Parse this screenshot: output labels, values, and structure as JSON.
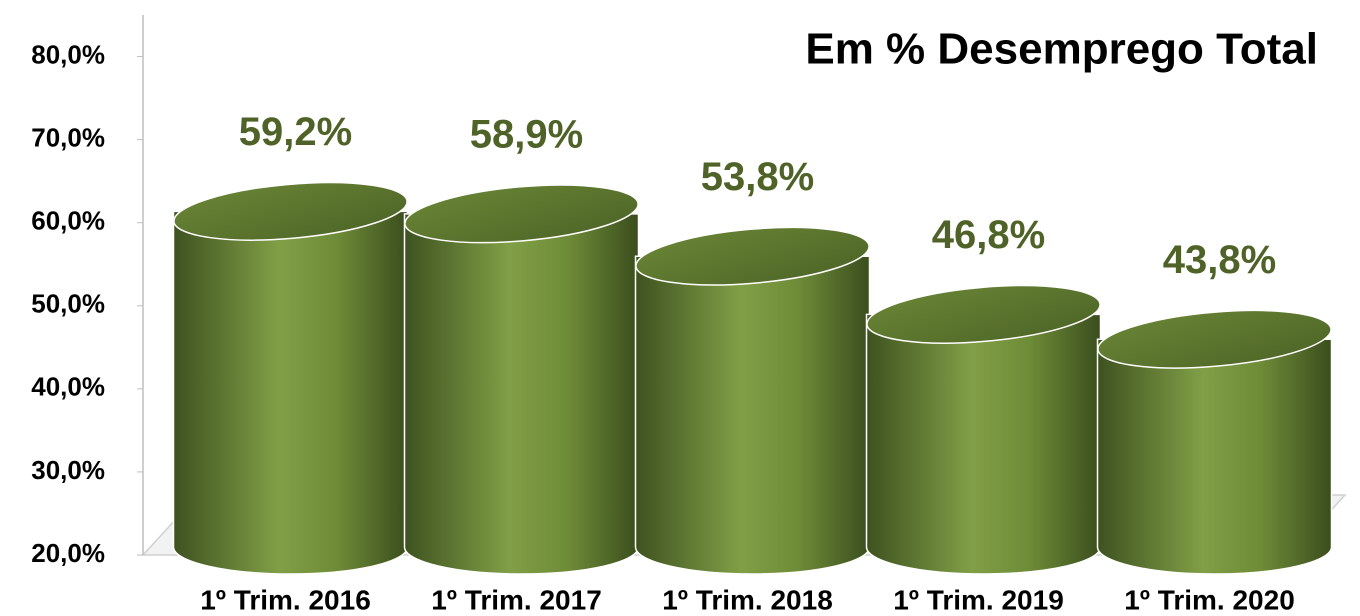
{
  "chart_data": {
    "type": "bar",
    "title": "Em % Desemprego Total",
    "categories": [
      "1º Trim. 2016",
      "1º Trim. 2017",
      "1º Trim. 2018",
      "1º Trim. 2019",
      "1º Trim. 2020"
    ],
    "values": [
      59.2,
      58.9,
      53.8,
      46.8,
      43.8
    ],
    "value_labels": [
      "59,2%",
      "58,9%",
      "53,8%",
      "46,8%",
      "43,8%"
    ],
    "color": "#76923c",
    "ylim": [
      20,
      85
    ],
    "yticks": [
      {
        "value": 20,
        "label": "20,0%"
      },
      {
        "value": 30,
        "label": "30,0%"
      },
      {
        "value": 40,
        "label": "40,0%"
      },
      {
        "value": 50,
        "label": "50,0%"
      },
      {
        "value": 60,
        "label": "60,0%"
      },
      {
        "value": 70,
        "label": "70,0%"
      },
      {
        "value": 80,
        "label": "80,0%"
      }
    ]
  }
}
